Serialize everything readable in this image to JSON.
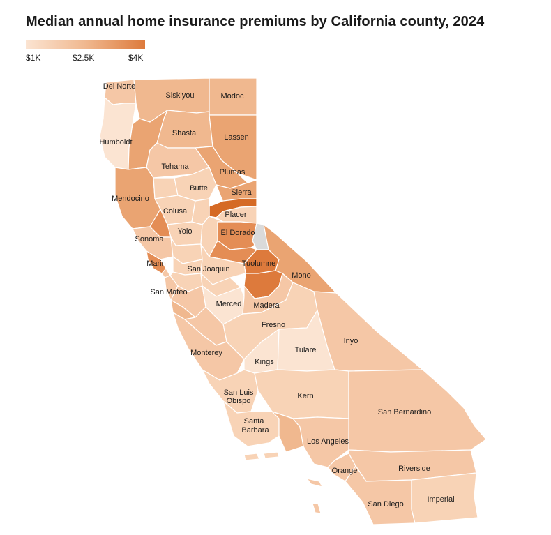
{
  "title": "Median annual home insurance premiums by California county, 2024",
  "legend": {
    "ticks": [
      "$1K",
      "$2.5K",
      "$4K"
    ],
    "colors": {
      "low": "#fbe4d2",
      "mid": "#f0b88f",
      "high": "#dd7a3c"
    }
  },
  "colors": {
    "c1": "#fbe4d2",
    "c2": "#f8d3b6",
    "c3": "#f5c7a6",
    "c4": "#f0b88f",
    "c5": "#eaa472",
    "c6": "#e48d55",
    "c7": "#dd7a3c",
    "c8": "#d56a25",
    "nodata": "#dadada"
  },
  "labels": {
    "del_norte": "Del Norte",
    "siskiyou": "Siskiyou",
    "modoc": "Modoc",
    "humboldt": "Humboldt",
    "shasta": "Shasta",
    "lassen": "Lassen",
    "tehama": "Tehama",
    "plumas": "Plumas",
    "butte": "Butte",
    "sierra": "Sierra",
    "mendocino": "Mendocino",
    "colusa": "Colusa",
    "placer": "Placer",
    "yolo": "Yolo",
    "el_dorado": "El Dorado",
    "sonoma": "Sonoma",
    "tuolumne": "Tuolumne",
    "marin": "Marin",
    "san_joaquin": "San Joaquin",
    "mono": "Mono",
    "san_mateo": "San Mateo",
    "merced": "Merced",
    "madera": "Madera",
    "fresno": "Fresno",
    "inyo": "Inyo",
    "monterey": "Monterey",
    "tulare": "Tulare",
    "kings": "Kings",
    "kern": "Kern",
    "san_luis_obispo_1": "San Luis",
    "san_luis_obispo_2": "Obispo",
    "san_bernardino": "San Bernardino",
    "santa_barbara_1": "Santa",
    "santa_barbara_2": "Barbara",
    "los_angeles": "Los Angeles",
    "orange": "Orange",
    "riverside": "Riverside",
    "san_diego": "San Diego",
    "imperial": "Imperial"
  }
}
